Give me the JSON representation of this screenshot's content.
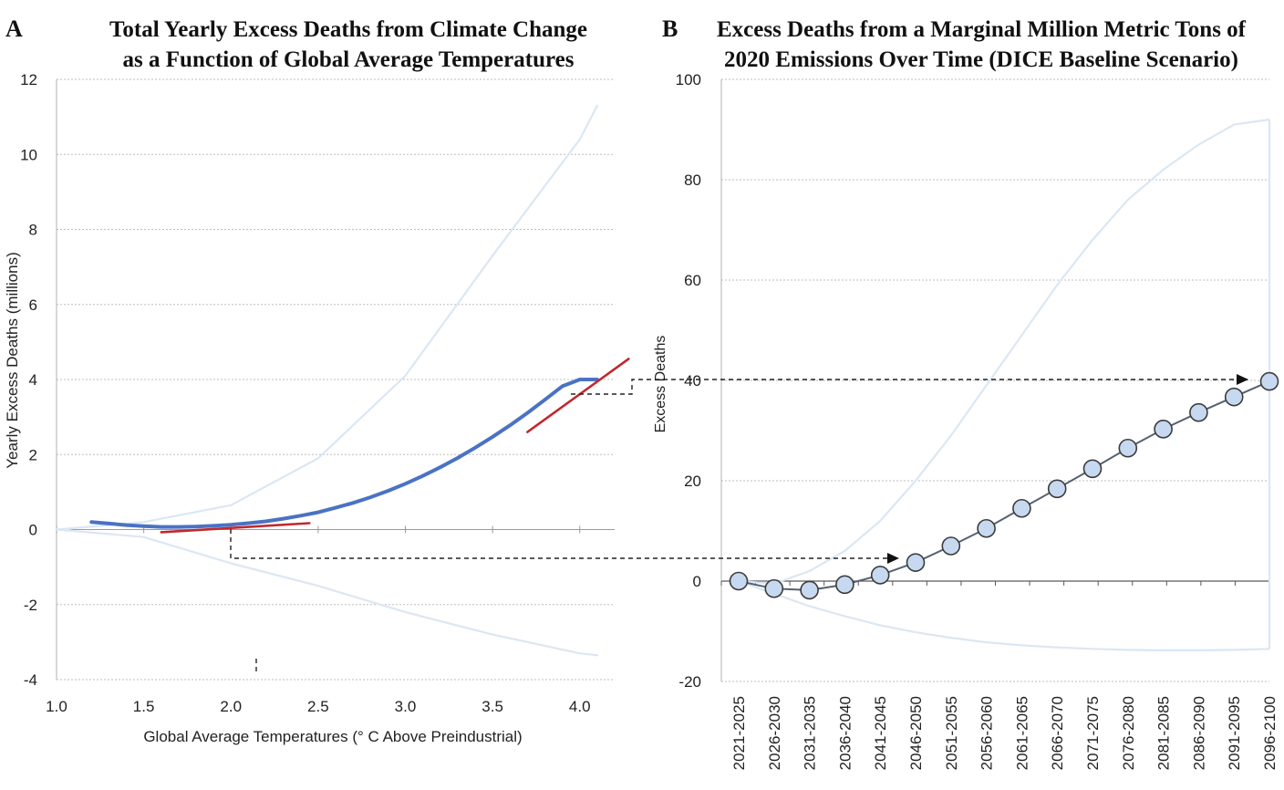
{
  "colors": {
    "grid": "#bdbdbd",
    "ci_band": "#dbe7f3",
    "fit_blue": "#4a72c4",
    "fit_red": "#c0282d",
    "connector": "#222222",
    "marker_fill": "#c6d9f0",
    "marker_stroke": "#3b3b3b",
    "series_line": "#566173",
    "frame": "#cfcfcf"
  },
  "chart_data": [
    {
      "panel_letter": "A",
      "type": "line",
      "title": {
        "line1": "Total Yearly Excess Deaths from Climate Change",
        "line2": "as a Function of Global Average Temperatures"
      },
      "xlabel": "Global Average Temperatures (° C Above Preindustrial)",
      "ylabel": "Yearly Excess Deaths (millions)",
      "xlim": [
        1.0,
        4.2
      ],
      "ylim": [
        -4,
        12
      ],
      "xticks": [
        "1.0",
        "1.5",
        "2.0",
        "2.5",
        "3.0",
        "3.5",
        "4.0"
      ],
      "yticks": [
        "-4",
        "-2",
        "0",
        "2",
        "4",
        "6",
        "8",
        "10",
        "12"
      ],
      "series": [
        {
          "name": "Central estimate",
          "color_key": "fit_blue",
          "x": [
            1.2,
            1.3,
            1.4,
            1.5,
            1.6,
            1.7,
            1.8,
            1.9,
            2.0,
            2.1,
            2.2,
            2.3,
            2.4,
            2.5,
            2.6,
            2.7,
            2.8,
            2.9,
            3.0,
            3.1,
            3.2,
            3.3,
            3.4,
            3.5,
            3.6,
            3.7,
            3.8,
            3.9,
            4.0,
            4.1
          ],
          "y": [
            0.2,
            0.16,
            0.12,
            0.09,
            0.07,
            0.07,
            0.08,
            0.1,
            0.13,
            0.17,
            0.22,
            0.29,
            0.37,
            0.46,
            0.58,
            0.71,
            0.86,
            1.03,
            1.22,
            1.43,
            1.66,
            1.91,
            2.18,
            2.47,
            2.78,
            3.11,
            3.46,
            3.82,
            4.0,
            4.0
          ]
        },
        {
          "name": "Upper confidence bound",
          "color_key": "ci_band",
          "x": [
            1.0,
            1.5,
            2.0,
            2.5,
            3.0,
            3.5,
            4.0,
            4.1
          ],
          "y": [
            0.0,
            0.2,
            0.65,
            1.9,
            4.1,
            7.3,
            10.4,
            11.3
          ]
        },
        {
          "name": "Lower confidence bound",
          "color_key": "ci_band",
          "x": [
            1.0,
            1.5,
            2.0,
            2.5,
            3.0,
            3.5,
            4.0,
            4.1
          ],
          "y": [
            0.0,
            -0.2,
            -0.9,
            -1.5,
            -2.2,
            -2.8,
            -3.3,
            -3.35
          ]
        },
        {
          "name": "Tangent at 2.0 °C",
          "color_key": "fit_red",
          "x": [
            1.6,
            2.45
          ],
          "y": [
            -0.07,
            0.17
          ]
        },
        {
          "name": "Tangent at 4.0 °C",
          "color_key": "fit_red",
          "x": [
            3.7,
            4.28
          ],
          "y": [
            2.6,
            4.55
          ]
        }
      ]
    },
    {
      "panel_letter": "B",
      "type": "line",
      "title": {
        "line1": "Excess Deaths from a Marginal Million Metric Tons of",
        "line2": "2020 Emissions Over Time (DICE Baseline Scenario)"
      },
      "xlabel": "",
      "ylabel": "Excess Deaths",
      "ylim": [
        -20,
        100
      ],
      "yticks": [
        "-20",
        "0",
        "20",
        "40",
        "60",
        "80",
        "100"
      ],
      "categories": [
        "2021-2025",
        "2026-2030",
        "2031-2035",
        "2036-2040",
        "2041-2045",
        "2046-2050",
        "2051-2055",
        "2056-2060",
        "2061-2065",
        "2066-2070",
        "2071-2075",
        "2076-2080",
        "2081-2085",
        "2086-2090",
        "2091-2095",
        "2096-2100"
      ],
      "series": [
        {
          "name": "Excess deaths",
          "values": [
            0,
            -1.5,
            -1.8,
            -0.7,
            1.2,
            3.7,
            7.0,
            10.5,
            14.5,
            18.4,
            22.4,
            26.5,
            30.3,
            33.6,
            36.7,
            39.8
          ]
        },
        {
          "name": "Upper confidence bound",
          "values": [
            0,
            -0.5,
            2,
            6,
            12,
            20,
            29,
            39,
            49,
            59,
            68,
            76,
            82,
            87,
            91,
            92
          ]
        },
        {
          "name": "Lower confidence bound",
          "values": [
            0,
            -2.5,
            -5,
            -7,
            -8.8,
            -10.2,
            -11.3,
            -12.2,
            -12.8,
            -13.2,
            -13.5,
            -13.7,
            -13.8,
            -13.8,
            -13.7,
            -13.5
          ]
        }
      ]
    }
  ]
}
